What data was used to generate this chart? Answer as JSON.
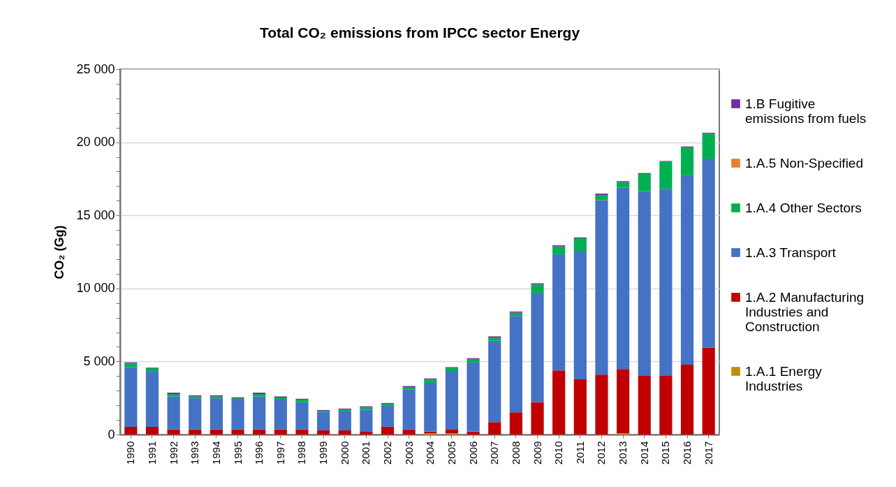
{
  "chart_data": {
    "type": "bar",
    "title": "Total CO₂ emissions from IPCC sector Energy",
    "ylabel": "CO₂ (Gg)",
    "stacked": true,
    "grid": "y",
    "legend": "right",
    "categories": [
      "1990",
      "1991",
      "1992",
      "1993",
      "1994",
      "1995",
      "1996",
      "1997",
      "1998",
      "1999",
      "2000",
      "2001",
      "2002",
      "2003",
      "2004",
      "2005",
      "2006",
      "2007",
      "2008",
      "2009",
      "2010",
      "2011",
      "2012",
      "2013",
      "2014",
      "2015",
      "2016",
      "2017"
    ],
    "ylim": [
      0,
      25000
    ],
    "yticks": [
      0,
      {
        "value": 1000,
        "label": null
      },
      {
        "value": 2000,
        "label": null
      },
      {
        "value": 3000,
        "label": null
      },
      {
        "value": 4000,
        "label": null
      },
      {
        "value": 5000,
        "label": "5 000"
      },
      {
        "value": 6000,
        "label": null
      },
      {
        "value": 7000,
        "label": null
      },
      {
        "value": 8000,
        "label": null
      },
      {
        "value": 9000,
        "label": null
      },
      {
        "value": 10000,
        "label": "10 000"
      },
      {
        "value": 11000,
        "label": null
      },
      {
        "value": 12000,
        "label": null
      },
      {
        "value": 13000,
        "label": null
      },
      {
        "value": 14000,
        "label": null
      },
      {
        "value": 15000,
        "label": "15 000"
      },
      {
        "value": 16000,
        "label": null
      },
      {
        "value": 17000,
        "label": null
      },
      {
        "value": 18000,
        "label": null
      },
      {
        "value": 19000,
        "label": null
      },
      {
        "value": 20000,
        "label": "20 000"
      },
      {
        "value": 21000,
        "label": null
      },
      {
        "value": 22000,
        "label": null
      },
      {
        "value": 23000,
        "label": null
      },
      {
        "value": 24000,
        "label": null
      },
      {
        "value": 25000,
        "label": "25 000"
      }
    ],
    "series": [
      {
        "name": "1.A.1 Energy Industries",
        "color": "#bf9000",
        "values": [
          0,
          0,
          0,
          0,
          0,
          0,
          0,
          0,
          0,
          0,
          0,
          0,
          0,
          0,
          80,
          80,
          0,
          0,
          0,
          0,
          0,
          0,
          0,
          80,
          0,
          0,
          0,
          0
        ]
      },
      {
        "name": "1.A.2 Manufacturing Industries and Construction",
        "color": "#c00000",
        "values": [
          530,
          530,
          350,
          350,
          350,
          350,
          350,
          350,
          350,
          290,
          290,
          190,
          530,
          350,
          130,
          290,
          210,
          850,
          1520,
          2220,
          4380,
          3780,
          4100,
          4400,
          4020,
          4020,
          4780,
          5940
        ]
      },
      {
        "name": "1.A.3 Transport",
        "color": "#4472c4",
        "values": [
          4100,
          3780,
          2260,
          2130,
          2130,
          2040,
          2260,
          2040,
          1880,
          1230,
          1330,
          1510,
          1470,
          2730,
          3330,
          3930,
          4720,
          5570,
          6590,
          7490,
          7960,
          8790,
          11930,
          12410,
          12630,
          12790,
          12960,
          12940
        ]
      },
      {
        "name": "1.A.4 Other Sectors",
        "color": "#00b050",
        "values": [
          230,
          230,
          160,
          130,
          130,
          90,
          160,
          140,
          160,
          100,
          90,
          180,
          100,
          170,
          220,
          260,
          240,
          220,
          230,
          550,
          530,
          860,
          370,
          380,
          1180,
          1870,
          1910,
          1710
        ]
      },
      {
        "name": "1.A.5 Non-Specified",
        "color": "#ed7d31",
        "values": [
          0,
          0,
          0,
          0,
          0,
          0,
          0,
          0,
          0,
          0,
          0,
          0,
          0,
          0,
          0,
          0,
          0,
          0,
          0,
          0,
          0,
          0,
          0,
          0,
          0,
          0,
          0,
          0
        ]
      },
      {
        "name": "1.B Fugitive emissions from fuels",
        "color": "#7030a0",
        "values": [
          80,
          40,
          100,
          80,
          80,
          70,
          100,
          80,
          60,
          60,
          70,
          60,
          60,
          70,
          80,
          60,
          60,
          80,
          80,
          90,
          80,
          60,
          90,
          70,
          60,
          40,
          60,
          60
        ]
      }
    ]
  }
}
